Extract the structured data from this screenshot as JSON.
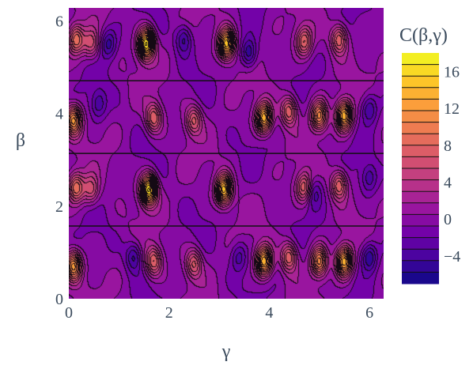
{
  "chart_data": {
    "type": "contour",
    "title": "",
    "xlabel": "γ",
    "ylabel": "β",
    "xlim": [
      0,
      6.283
    ],
    "ylim": [
      0,
      6.283
    ],
    "x_ticks": [
      0,
      2,
      4,
      6
    ],
    "y_ticks": [
      0,
      2,
      4,
      6
    ],
    "x_tick_labels": [
      "0",
      "2",
      "4",
      "6"
    ],
    "y_tick_labels": [
      "0",
      "2",
      "4",
      "6"
    ],
    "colorbar": {
      "title": "C(β,γ)",
      "range": [
        -7,
        18
      ],
      "ticks": [
        -4,
        0,
        4,
        8,
        12,
        16
      ],
      "tick_labels": [
        "−4",
        "0",
        "4",
        "8",
        "12",
        "16"
      ],
      "contour_step": 1.25,
      "colorscale": [
        "#0d0887",
        "#46039f",
        "#7201a8",
        "#9c179e",
        "#bd3786",
        "#d8576b",
        "#ed7953",
        "#fb9f3a",
        "#fdca26",
        "#f0f921"
      ]
    },
    "horizontal_lines_beta": [
      1.57,
      3.14,
      4.71
    ],
    "peaks": [
      {
        "gamma": 1.55,
        "beta": 5.5,
        "value": 17
      },
      {
        "gamma": 1.6,
        "beta": 2.35,
        "value": 17
      },
      {
        "gamma": 3.15,
        "beta": 5.5,
        "value": 15
      },
      {
        "gamma": 3.1,
        "beta": 2.35,
        "value": 15
      },
      {
        "gamma": 0.1,
        "beta": 3.85,
        "value": 12
      },
      {
        "gamma": 0.1,
        "beta": 0.7,
        "value": 12
      },
      {
        "gamma": 0.15,
        "beta": 5.6,
        "value": 9
      },
      {
        "gamma": 0.15,
        "beta": 2.4,
        "value": 9
      },
      {
        "gamma": 0.45,
        "beta": 5.5,
        "value": 6
      },
      {
        "gamma": 0.45,
        "beta": 2.35,
        "value": 6
      },
      {
        "gamma": 1.7,
        "beta": 3.9,
        "value": 8
      },
      {
        "gamma": 1.7,
        "beta": 0.8,
        "value": 8
      },
      {
        "gamma": 2.5,
        "beta": 3.85,
        "value": 7
      },
      {
        "gamma": 2.5,
        "beta": 0.75,
        "value": 7
      },
      {
        "gamma": 3.9,
        "beta": 3.9,
        "value": 14
      },
      {
        "gamma": 3.9,
        "beta": 0.8,
        "value": 14
      },
      {
        "gamma": 4.4,
        "beta": 4.05,
        "value": 8
      },
      {
        "gamma": 4.4,
        "beta": 0.9,
        "value": 8
      },
      {
        "gamma": 4.7,
        "beta": 5.55,
        "value": 8
      },
      {
        "gamma": 4.7,
        "beta": 2.4,
        "value": 8
      },
      {
        "gamma": 5.0,
        "beta": 3.95,
        "value": 11
      },
      {
        "gamma": 5.0,
        "beta": 0.8,
        "value": 11
      },
      {
        "gamma": 5.5,
        "beta": 3.95,
        "value": 14
      },
      {
        "gamma": 5.5,
        "beta": 0.8,
        "value": 14
      },
      {
        "gamma": 5.4,
        "beta": 5.6,
        "value": 8
      },
      {
        "gamma": 5.4,
        "beta": 2.45,
        "value": 8
      },
      {
        "gamma": 0.8,
        "beta": 5.5,
        "value": -5
      },
      {
        "gamma": 2.3,
        "beta": 5.6,
        "value": -5
      },
      {
        "gamma": 3.6,
        "beta": 5.3,
        "value": -6
      },
      {
        "gamma": 0.6,
        "beta": 4.2,
        "value": -4
      },
      {
        "gamma": 1.3,
        "beta": 0.9,
        "value": -5
      },
      {
        "gamma": 3.4,
        "beta": 0.9,
        "value": -4
      },
      {
        "gamma": 6.0,
        "beta": 0.9,
        "value": -6
      },
      {
        "gamma": 6.0,
        "beta": 4.1,
        "value": -5
      },
      {
        "gamma": 4.9,
        "beta": 2.3,
        "value": -4
      },
      {
        "gamma": 6.0,
        "beta": 2.6,
        "value": -4
      }
    ]
  }
}
